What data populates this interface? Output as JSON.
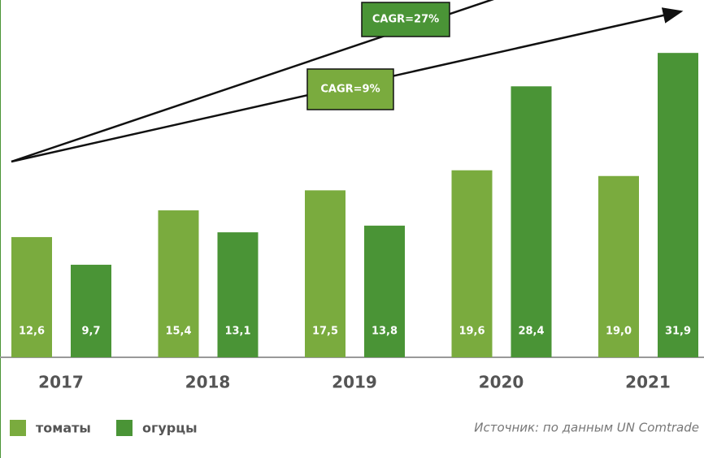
{
  "chart_data": {
    "type": "bar",
    "categories": [
      "2017",
      "2018",
      "2019",
      "2020",
      "2021"
    ],
    "series": [
      {
        "name": "томаты",
        "color": "#7aab3e",
        "values": [
          12.6,
          15.4,
          17.5,
          19.6,
          19.0
        ],
        "value_labels": [
          "12,6",
          "15,4",
          "17,5",
          "19,6",
          "19,0"
        ]
      },
      {
        "name": "огурцы",
        "color": "#4a9436",
        "values": [
          9.7,
          13.1,
          13.8,
          28.4,
          31.9
        ],
        "value_labels": [
          "9,7",
          "13,1",
          "13,8",
          "28,4",
          "31,9"
        ]
      }
    ],
    "annotations": [
      "CAGR=27%",
      "CAGR=9%"
    ],
    "source": "Источник: по данным UN Comtrade",
    "legend": "bottom-left"
  }
}
